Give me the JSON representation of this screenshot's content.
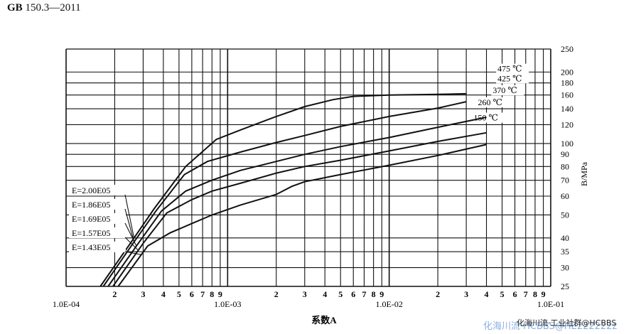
{
  "header": {
    "standard": "GB",
    "number": "150.3—2011"
  },
  "watermark": {
    "line1": "化海川流·工业社群@HCBBS",
    "line2": "化海川流·HCBBS@HE222222z"
  },
  "chart_data": {
    "type": "line",
    "xscale": "log",
    "yscale": "log",
    "xlim": [
      0.0001,
      0.1
    ],
    "ylim": [
      25,
      250
    ],
    "xlabel": "系数A",
    "ylabel": "B/MPa",
    "grid": true,
    "x_major_labels": [
      "1.0E-04",
      "1.0E-03",
      "1.0E-02",
      "1.0E-01"
    ],
    "x_minor_labels": [
      "2",
      "3",
      "4",
      "5",
      "6",
      "7",
      "8",
      "9"
    ],
    "y_ticks": [
      25,
      30,
      35,
      40,
      50,
      60,
      70,
      80,
      90,
      100,
      120,
      140,
      160,
      180,
      200,
      250
    ],
    "modulus_labels": [
      "E=2.00E05",
      "E=1.86E05",
      "E=1.69E05",
      "E=1.57E05",
      "E=1.43E05"
    ],
    "series": [
      {
        "name": "150 ℃",
        "points": [
          [
            0.000163,
            25
          ],
          [
            0.00025,
            38
          ],
          [
            0.00035,
            53
          ],
          [
            0.00055,
            80
          ],
          [
            0.00085,
            104
          ],
          [
            0.0012,
            114
          ],
          [
            0.002,
            130
          ],
          [
            0.003,
            143
          ],
          [
            0.0045,
            153
          ],
          [
            0.006,
            158
          ],
          [
            0.01,
            160
          ],
          [
            0.02,
            161
          ],
          [
            0.03,
            162
          ]
        ]
      },
      {
        "name": "260 ℃",
        "points": [
          [
            0.00017,
            25
          ],
          [
            0.00026,
            38
          ],
          [
            0.00036,
            52
          ],
          [
            0.00054,
            74
          ],
          [
            0.00075,
            84
          ],
          [
            0.0012,
            92
          ],
          [
            0.002,
            101
          ],
          [
            0.003,
            108
          ],
          [
            0.005,
            118
          ],
          [
            0.01,
            130
          ],
          [
            0.02,
            141
          ],
          [
            0.03,
            150
          ]
        ]
      },
      {
        "name": "370 ℃",
        "points": [
          [
            0.000182,
            25
          ],
          [
            0.00028,
            38
          ],
          [
            0.00039,
            52
          ],
          [
            0.00055,
            63
          ],
          [
            0.0008,
            70
          ],
          [
            0.0012,
            77
          ],
          [
            0.002,
            84
          ],
          [
            0.003,
            90
          ],
          [
            0.005,
            97
          ],
          [
            0.01,
            106
          ],
          [
            0.02,
            117
          ],
          [
            0.04,
            129
          ]
        ]
      },
      {
        "name": "425 ℃",
        "points": [
          [
            0.000195,
            25
          ],
          [
            0.0003,
            38
          ],
          [
            0.00042,
            51
          ],
          [
            0.0006,
            58
          ],
          [
            0.0008,
            63
          ],
          [
            0.0012,
            68
          ],
          [
            0.002,
            75
          ],
          [
            0.003,
            80
          ],
          [
            0.005,
            85
          ],
          [
            0.01,
            93
          ],
          [
            0.02,
            102
          ],
          [
            0.04,
            111
          ]
        ]
      },
      {
        "name": "475 ℃",
        "points": [
          [
            0.00021,
            25
          ],
          [
            0.00032,
            37
          ],
          [
            0.00044,
            42
          ],
          [
            0.0006,
            46
          ],
          [
            0.0008,
            50
          ],
          [
            0.0012,
            55
          ],
          [
            0.002,
            61
          ],
          [
            0.0025,
            66
          ],
          [
            0.003,
            69
          ],
          [
            0.005,
            74
          ],
          [
            0.01,
            81
          ],
          [
            0.02,
            89
          ],
          [
            0.04,
            99
          ]
        ]
      }
    ]
  }
}
